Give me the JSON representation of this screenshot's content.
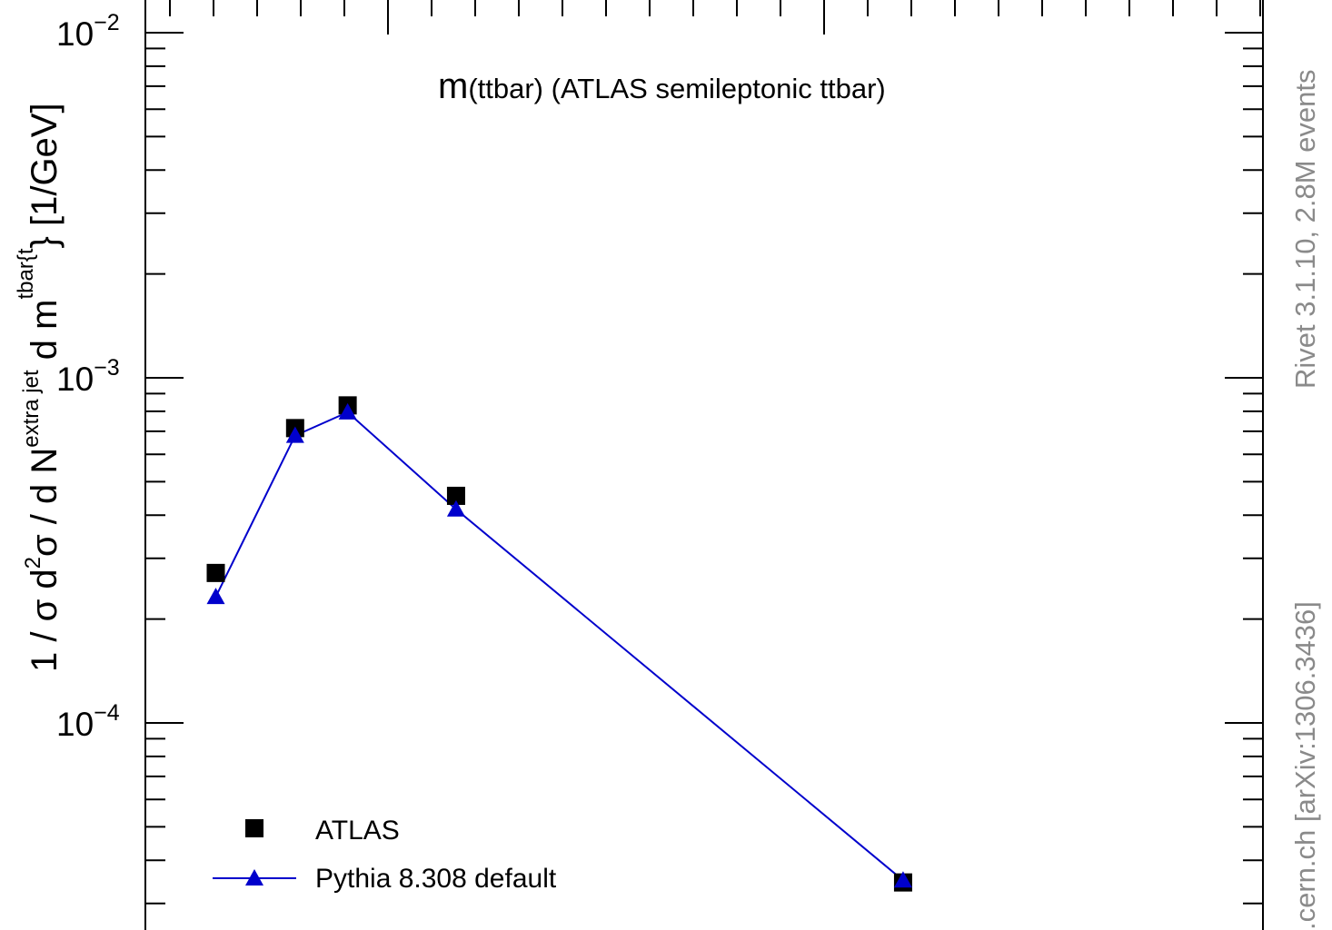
{
  "chart_data": {
    "type": "scatter",
    "title_main": "m",
    "title_rest": "(ttbar) (ATLAS semileptonic ttbar)",
    "ylabel": {
      "part1": "1 / σ d",
      "sup1": "2",
      "part2": "σ /  d N",
      "sup2": "extra jet",
      "part3": " d m",
      "sup3": "tbar{t",
      "part4": "} [1/GeV]"
    },
    "yscale": "log",
    "ylim": [
      2e-05,
      0.011
    ],
    "xlim": [
      0,
      1
    ],
    "yticks": [
      {
        "base": "10",
        "exp": "−2",
        "value": 0.01
      },
      {
        "base": "10",
        "exp": "−3",
        "value": 0.001
      },
      {
        "base": "10",
        "exp": "−4",
        "value": 0.0001
      }
    ],
    "legend_position": "bottom-left",
    "series": [
      {
        "name": "ATLAS",
        "marker": "square",
        "color": "#000000",
        "x": [
          0.063,
          0.134,
          0.181,
          0.278,
          0.678
        ],
        "y": [
          0.000272,
          0.000715,
          0.000832,
          0.000455,
          3.45e-05
        ]
      },
      {
        "name": "Pythia 8.308 default",
        "marker": "triangle",
        "line": true,
        "color": "#0000cc",
        "x": [
          0.063,
          0.134,
          0.181,
          0.278,
          0.678
        ],
        "y": [
          0.000232,
          0.00068,
          0.000795,
          0.000416,
          3.5e-05
        ]
      }
    ]
  },
  "side_text": {
    "rivet": "Rivet 3.1.10,  2.8M events",
    "arxiv": ".cern.ch [arXiv:1306.3436]"
  }
}
